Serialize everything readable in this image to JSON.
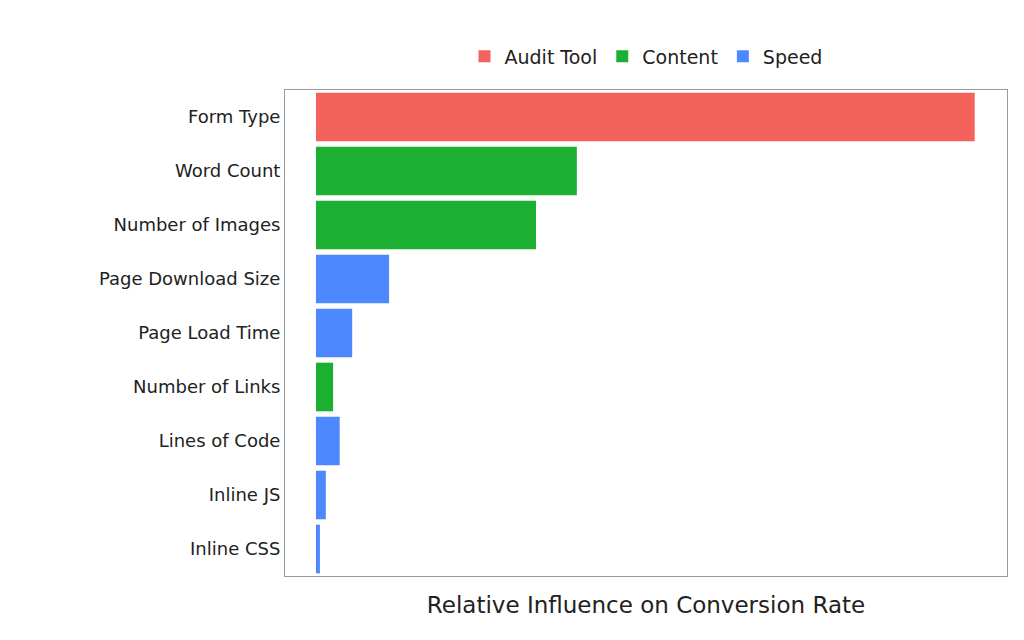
{
  "chart_data": {
    "type": "bar",
    "orientation": "horizontal",
    "x_label": "Relative Influence on Conversion Rate",
    "categories": [
      "Form Type",
      "Word Count",
      "Number of Images",
      "Page Download Size",
      "Page Load Time",
      "Number of Links",
      "Lines of Code",
      "Inline JS",
      "Inline CSS"
    ],
    "series": [
      {
        "name": "Audit Tool",
        "color": "#f4625c",
        "values": [
          100,
          null,
          null,
          null,
          null,
          null,
          null,
          null,
          null
        ]
      },
      {
        "name": "Content",
        "color": "#1bb031",
        "values": [
          null,
          39.6,
          33.4,
          null,
          null,
          2.6,
          null,
          null,
          null
        ]
      },
      {
        "name": "Speed",
        "color": "#4e88fe",
        "values": [
          null,
          null,
          null,
          11.1,
          5.5,
          null,
          3.6,
          1.5,
          0.6
        ]
      }
    ],
    "xlim": [
      -4.7,
      104.9
    ],
    "tick_labels": "y",
    "legend": "top",
    "grid": false
  }
}
